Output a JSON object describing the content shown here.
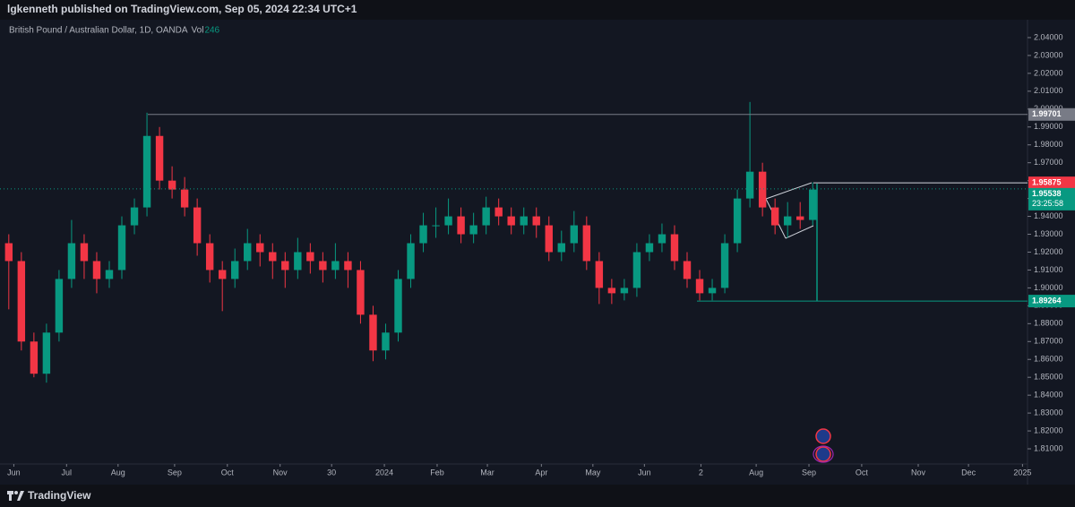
{
  "header": {
    "text": "lgkenneth published on TradingView.com, Sep 05, 2024 22:34 UTC+1"
  },
  "chart_data": {
    "type": "candlestick",
    "title": "British Pound / Australian Dollar, 1D, OANDA",
    "volume_label": "Vol",
    "volume": 246,
    "up_color": "#089981",
    "down_color": "#f23645",
    "candles": [
      [
        1.925,
        1.93,
        1.888,
        1.915
      ],
      [
        1.915,
        1.92,
        1.865,
        1.87
      ],
      [
        1.87,
        1.875,
        1.85,
        1.852
      ],
      [
        1.852,
        1.88,
        1.847,
        1.875
      ],
      [
        1.875,
        1.91,
        1.87,
        1.905
      ],
      [
        1.905,
        1.938,
        1.9,
        1.925
      ],
      [
        1.925,
        1.93,
        1.905,
        1.915
      ],
      [
        1.915,
        1.92,
        1.897,
        1.905
      ],
      [
        1.905,
        1.915,
        1.9,
        1.91
      ],
      [
        1.91,
        1.94,
        1.905,
        1.935
      ],
      [
        1.935,
        1.95,
        1.93,
        1.945
      ],
      [
        1.945,
        1.998,
        1.94,
        1.985
      ],
      [
        1.985,
        1.99,
        1.955,
        1.96
      ],
      [
        1.96,
        1.968,
        1.95,
        1.955
      ],
      [
        1.955,
        1.962,
        1.94,
        1.945
      ],
      [
        1.945,
        1.95,
        1.918,
        1.925
      ],
      [
        1.925,
        1.93,
        1.903,
        1.91
      ],
      [
        1.91,
        1.915,
        1.887,
        1.905
      ],
      [
        1.905,
        1.922,
        1.9,
        1.915
      ],
      [
        1.915,
        1.933,
        1.91,
        1.925
      ],
      [
        1.925,
        1.93,
        1.912,
        1.92
      ],
      [
        1.92,
        1.925,
        1.905,
        1.915
      ],
      [
        1.915,
        1.92,
        1.9,
        1.91
      ],
      [
        1.91,
        1.928,
        1.905,
        1.92
      ],
      [
        1.92,
        1.925,
        1.908,
        1.915
      ],
      [
        1.915,
        1.92,
        1.903,
        1.91
      ],
      [
        1.91,
        1.925,
        1.905,
        1.915
      ],
      [
        1.915,
        1.92,
        1.9,
        1.91
      ],
      [
        1.91,
        1.915,
        1.88,
        1.885
      ],
      [
        1.885,
        1.89,
        1.859,
        1.865
      ],
      [
        1.865,
        1.88,
        1.86,
        1.875
      ],
      [
        1.875,
        1.91,
        1.87,
        1.905
      ],
      [
        1.905,
        1.93,
        1.9,
        1.925
      ],
      [
        1.925,
        1.942,
        1.92,
        1.935
      ],
      [
        1.935,
        1.945,
        1.928,
        1.935
      ],
      [
        1.935,
        1.95,
        1.93,
        1.94
      ],
      [
        1.94,
        1.945,
        1.925,
        1.93
      ],
      [
        1.93,
        1.942,
        1.925,
        1.935
      ],
      [
        1.935,
        1.951,
        1.93,
        1.945
      ],
      [
        1.945,
        1.95,
        1.935,
        1.94
      ],
      [
        1.94,
        1.945,
        1.93,
        1.935
      ],
      [
        1.935,
        1.945,
        1.93,
        1.94
      ],
      [
        1.94,
        1.945,
        1.928,
        1.935
      ],
      [
        1.935,
        1.94,
        1.915,
        1.92
      ],
      [
        1.92,
        1.932,
        1.915,
        1.925
      ],
      [
        1.925,
        1.943,
        1.92,
        1.935
      ],
      [
        1.935,
        1.94,
        1.91,
        1.915
      ],
      [
        1.915,
        1.92,
        1.891,
        1.9
      ],
      [
        1.9,
        1.905,
        1.891,
        1.897
      ],
      [
        1.897,
        1.905,
        1.893,
        1.9
      ],
      [
        1.9,
        1.925,
        1.895,
        1.92
      ],
      [
        1.92,
        1.93,
        1.915,
        1.925
      ],
      [
        1.925,
        1.936,
        1.92,
        1.93
      ],
      [
        1.93,
        1.935,
        1.91,
        1.915
      ],
      [
        1.915,
        1.92,
        1.9,
        1.905
      ],
      [
        1.905,
        1.91,
        1.893,
        1.897
      ],
      [
        1.897,
        1.905,
        1.893,
        1.9
      ],
      [
        1.9,
        1.93,
        1.897,
        1.925
      ],
      [
        1.925,
        1.955,
        1.92,
        1.95
      ],
      [
        1.95,
        2.004,
        1.945,
        1.965
      ],
      [
        1.965,
        1.97,
        1.94,
        1.945
      ],
      [
        1.945,
        1.95,
        1.93,
        1.935
      ],
      [
        1.935,
        1.948,
        1.928,
        1.94
      ],
      [
        1.94,
        1.948,
        1.933,
        1.938
      ],
      [
        1.938,
        1.959,
        1.935,
        1.955
      ]
    ],
    "xlim": [
      -0.7,
      81.1
    ],
    "xticks": [
      {
        "value": 0.4,
        "label": "Jun"
      },
      {
        "value": 4.6,
        "label": "Jul"
      },
      {
        "value": 8.7,
        "label": "Aug"
      },
      {
        "value": 13.2,
        "label": "Sep"
      },
      {
        "value": 17.4,
        "label": "Oct"
      },
      {
        "value": 21.6,
        "label": "Nov"
      },
      {
        "value": 25.7,
        "label": "30"
      },
      {
        "value": 29.9,
        "label": "2024"
      },
      {
        "value": 34.1,
        "label": "Feb"
      },
      {
        "value": 38.1,
        "label": "Mar"
      },
      {
        "value": 42.4,
        "label": "Apr"
      },
      {
        "value": 46.5,
        "label": "May"
      },
      {
        "value": 50.6,
        "label": "Jun"
      },
      {
        "value": 55.1,
        "label": "2"
      },
      {
        "value": 59.5,
        "label": "Aug"
      },
      {
        "value": 63.7,
        "label": "Sep"
      },
      {
        "value": 67.9,
        "label": "Oct"
      },
      {
        "value": 72.4,
        "label": "Nov"
      },
      {
        "value": 76.4,
        "label": "Dec"
      },
      {
        "value": 80.7,
        "label": "2025"
      }
    ],
    "ylim": [
      1.8015,
      2.0485
    ],
    "yticks": [
      {
        "value": 2.04,
        "label": "2.04000"
      },
      {
        "value": 2.03,
        "label": "2.03000"
      },
      {
        "value": 2.02,
        "label": "2.02000"
      },
      {
        "value": 2.01,
        "label": "2.01000"
      },
      {
        "value": 2.0,
        "label": "2.00000"
      },
      {
        "value": 1.99,
        "label": "1.99000"
      },
      {
        "value": 1.98,
        "label": "1.98000"
      },
      {
        "value": 1.97,
        "label": "1.97000"
      },
      {
        "value": 1.96,
        "label": "1.96000"
      },
      {
        "value": 1.95,
        "label": "1.95000"
      },
      {
        "value": 1.94,
        "label": "1.94000"
      },
      {
        "value": 1.93,
        "label": "1.93000"
      },
      {
        "value": 1.92,
        "label": "1.92000"
      },
      {
        "value": 1.91,
        "label": "1.91000"
      },
      {
        "value": 1.9,
        "label": "1.90000"
      },
      {
        "value": 1.89,
        "label": "1.89000"
      },
      {
        "value": 1.88,
        "label": "1.88000"
      },
      {
        "value": 1.87,
        "label": "1.87000"
      },
      {
        "value": 1.86,
        "label": "1.86000"
      },
      {
        "value": 1.85,
        "label": "1.85000"
      },
      {
        "value": 1.84,
        "label": "1.84000"
      },
      {
        "value": 1.83,
        "label": "1.83000"
      },
      {
        "value": 1.82,
        "label": "1.82000"
      },
      {
        "value": 1.81,
        "label": "1.81000"
      }
    ],
    "levels": [
      {
        "value": 1.99701,
        "color": "#787b86"
      },
      {
        "value": 1.89264,
        "color": "#089981"
      }
    ],
    "high_marker": 1.95875,
    "last_price": 1.95538,
    "countdown": "23:25:58"
  },
  "footer": {
    "brand": "TradingView"
  }
}
